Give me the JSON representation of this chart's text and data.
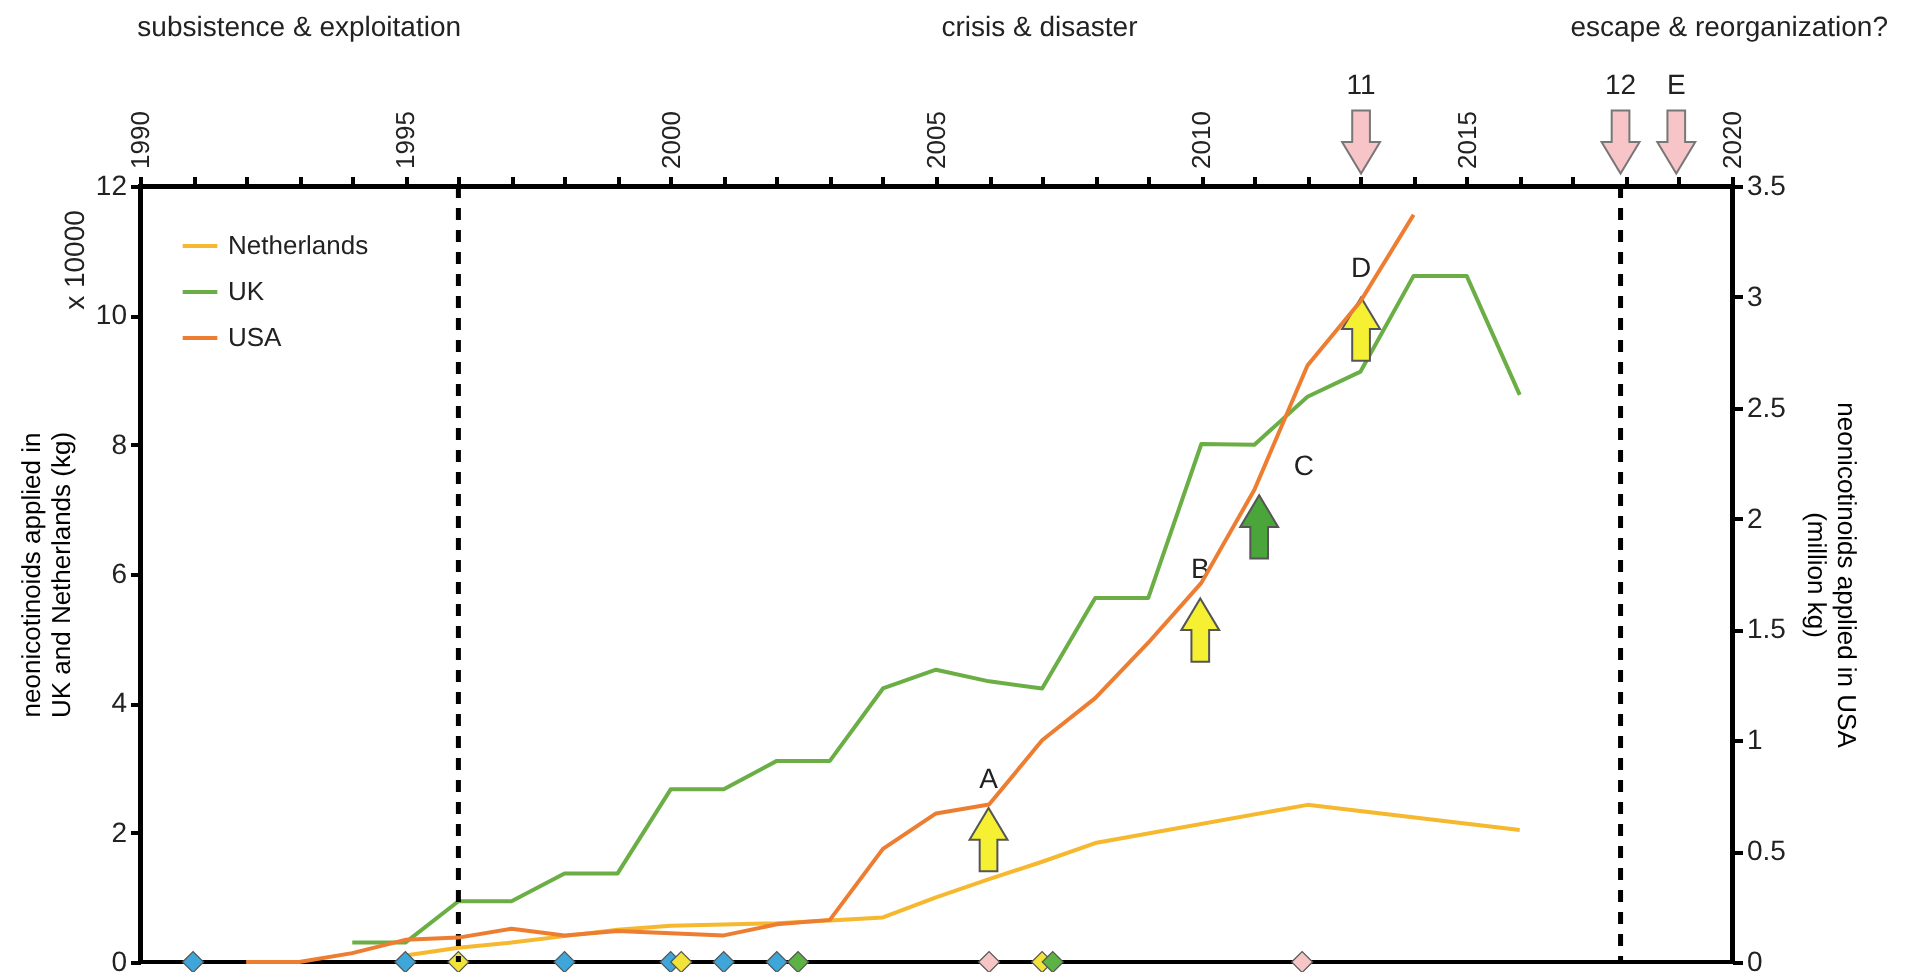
{
  "chart_data": {
    "type": "line",
    "ylabel": "neonicotinoids applied in\nUK and Netherlands (kg)",
    "y2label": "neonicotinoids applied in USA\n(million kg)",
    "xlim": [
      1990,
      2020
    ],
    "xticks": [
      1990,
      {
        "value": 1991,
        "label": null
      },
      {
        "value": 1992,
        "label": null
      },
      {
        "value": 1993,
        "label": null
      },
      {
        "value": 1994,
        "label": null
      },
      1995,
      {
        "value": 1996,
        "label": null
      },
      {
        "value": 1997,
        "label": null
      },
      {
        "value": 1998,
        "label": null
      },
      {
        "value": 1999,
        "label": null
      },
      2000,
      {
        "value": 2001,
        "label": null
      },
      {
        "value": 2002,
        "label": null
      },
      {
        "value": 2003,
        "label": null
      },
      {
        "value": 2004,
        "label": null
      },
      2005,
      {
        "value": 2006,
        "label": null
      },
      {
        "value": 2007,
        "label": null
      },
      {
        "value": 2008,
        "label": null
      },
      {
        "value": 2009,
        "label": null
      },
      2010,
      {
        "value": 2011,
        "label": null
      },
      {
        "value": 2012,
        "label": null
      },
      {
        "value": 2013,
        "label": null
      },
      {
        "value": 2014,
        "label": null
      },
      2015,
      {
        "value": 2016,
        "label": null
      },
      {
        "value": 2017,
        "label": null
      },
      {
        "value": 2018,
        "label": null
      },
      {
        "value": 2019,
        "label": null
      },
      2020
    ],
    "ylim": [
      0,
      12
    ],
    "yticks": [
      0,
      2,
      4,
      6,
      8,
      10,
      12
    ],
    "y2lim": [
      0,
      3.5
    ],
    "y2ticks": [
      0,
      0.5,
      1,
      1.5,
      2,
      2.5,
      3,
      3.5
    ],
    "legend": "top left",
    "grid": false,
    "marker": "none",
    "line_style": "solid",
    "series": [
      {
        "name": "Netherlands",
        "color": "#f5b82e",
        "x": [
          1995,
          1996,
          1997,
          1998,
          1999,
          2000,
          2001,
          2002,
          2003,
          2004,
          2005,
          2006,
          2007,
          2008,
          2012,
          2016
        ],
        "values": [
          0.1,
          0.22,
          0.3,
          0.4,
          0.5,
          0.56,
          0.58,
          0.6,
          0.64,
          0.69,
          1.0,
          1.28,
          1.55,
          1.84,
          2.43,
          2.04
        ]
      },
      {
        "name": "UK",
        "color": "#6aae45",
        "x": [
          1994,
          1995,
          1996,
          1997,
          1998,
          1999,
          2000,
          2001,
          2002,
          2003,
          2004,
          2005,
          2006,
          2007,
          2008,
          2009,
          2010,
          2011,
          2012,
          2013,
          2014,
          2015,
          2016
        ],
        "values": [
          0.3,
          0.3,
          0.94,
          0.94,
          1.37,
          1.37,
          2.67,
          2.67,
          3.11,
          3.11,
          4.23,
          4.52,
          4.34,
          4.23,
          5.63,
          5.63,
          8.01,
          8.0,
          8.74,
          9.13,
          10.61,
          10.61,
          8.77
        ]
      },
      {
        "name": "USA",
        "color": "#ed7d31",
        "axis": "y2",
        "x": [
          1992,
          1993,
          1994,
          1995,
          1996,
          1997,
          1998,
          1999,
          2000,
          2001,
          2002,
          2003,
          2004,
          2005,
          2006,
          2007,
          2008,
          2009,
          2010,
          2011,
          2012,
          2013,
          2014
        ],
        "values": [
          0.0,
          0.0,
          0.04,
          0.1,
          0.11,
          0.15,
          0.12,
          0.14,
          0.13,
          0.12,
          0.17,
          0.19,
          0.51,
          0.67,
          0.71,
          1.0,
          1.19,
          1.44,
          1.71,
          2.13,
          2.69,
          2.98,
          3.37
        ]
      },
      {
        "type": "scatter",
        "marker": "diamond",
        "x": [
          1991,
          1995,
          1998,
          2000,
          2001,
          2002,
          1996,
          2000.2,
          2007,
          2002.4,
          2007.2,
          2006,
          2011.9
        ],
        "values": [
          0,
          0,
          0,
          0,
          0,
          0,
          0,
          0,
          0,
          0,
          0,
          0,
          0
        ],
        "colors": [
          "#3ea6d8",
          "#3ea6d8",
          "#3ea6d8",
          "#3ea6d8",
          "#3ea6d8",
          "#3ea6d8",
          "#f2e33a",
          "#f2e33a",
          "#f2e33a",
          "#5cb244",
          "#5cb244",
          "#f6c6c6",
          "#f6c6c6"
        ]
      }
    ],
    "ref_lines": [
      {
        "axis": "x",
        "value": 1996,
        "line_style": "dashed",
        "color": "#000000"
      },
      {
        "axis": "x",
        "value": 2017.9,
        "line_style": "dashed",
        "color": "#000000"
      }
    ],
    "annotations": [
      "subsistence & exploitation",
      "crisis & disaster",
      "escape & reorganization?",
      "x 10000",
      "A",
      "B",
      "C",
      "D",
      "11",
      "12",
      "E"
    ]
  }
}
